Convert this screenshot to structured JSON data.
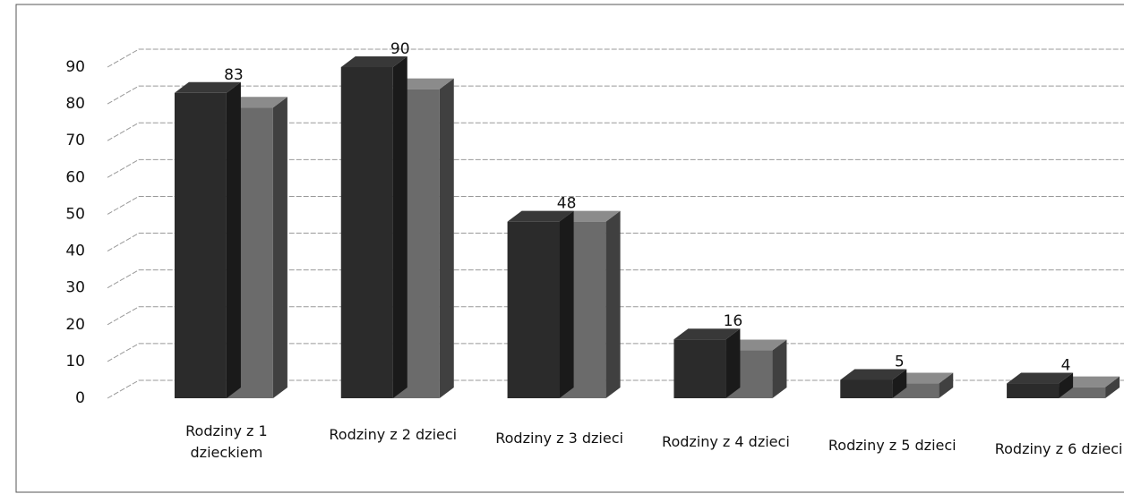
{
  "chart_data": {
    "type": "bar3d",
    "categories": [
      "Rodziny z 1 dzieckiem",
      "Rodziny z 2 dzieci",
      "Rodziny z 3 dzieci",
      "Rodziny z 4 dzieci",
      "Rodziny z 5 dzieci",
      "Rodziny z 6 dzieci"
    ],
    "series": [
      {
        "color": "#2b2b2b",
        "values": [
          83,
          90,
          48,
          16,
          5,
          4
        ]
      },
      {
        "color": "#6b6b6b",
        "values": [
          79,
          84,
          48,
          13,
          4,
          3
        ]
      }
    ],
    "labeled_series": 0,
    "ylim": [
      0,
      90
    ],
    "yticks": [
      0,
      10,
      20,
      30,
      40,
      50,
      60,
      70,
      80,
      90
    ],
    "grid": true
  }
}
